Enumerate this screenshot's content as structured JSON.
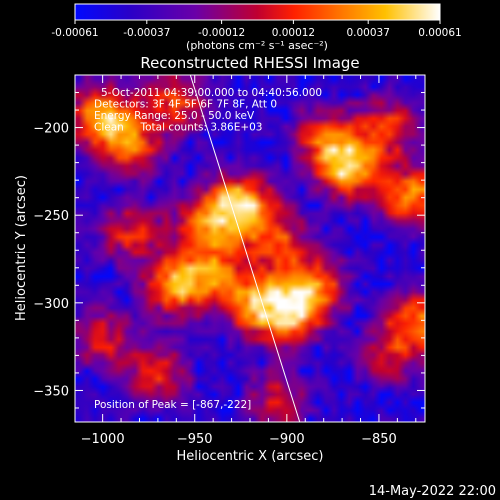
{
  "colorbar": {
    "ticks": [
      "-0.00061",
      "-0.00037",
      "-0.00012",
      "0.00012",
      "0.00037",
      "0.00061"
    ],
    "tick_values": [
      -0.00061,
      -0.00037,
      -0.00012,
      0.00012,
      0.00037,
      0.00061
    ],
    "range": [
      -0.00061,
      0.00061
    ],
    "units_label": "(photons cm⁻² s⁻¹ asec⁻²)"
  },
  "chart_data": {
    "type": "heatmap",
    "title": "Reconstructed RHESSI Image",
    "xlabel": "Heliocentric X (arcsec)",
    "ylabel": "Heliocentric Y (arcsec)",
    "xlim": [
      -1015,
      -825
    ],
    "ylim": [
      -368,
      -170
    ],
    "x_ticks": [
      -1000,
      -950,
      -900,
      -850
    ],
    "x_tick_labels": [
      "−1000",
      "−950",
      "−900",
      "−850"
    ],
    "y_ticks": [
      -200,
      -250,
      -300,
      -350
    ],
    "y_tick_labels": [
      "−200",
      "−250",
      "−300",
      "−350"
    ],
    "colormap": "blue-purple-red-yellow-white",
    "limb_line": [
      [
        -953,
        -168
      ],
      [
        -893,
        -368
      ]
    ],
    "peak": [
      -867,
      -222
    ],
    "sources": [
      {
        "x": -1000,
        "y": -193,
        "v": 0.8
      },
      {
        "x": -985,
        "y": -210,
        "v": 0.6
      },
      {
        "x": -960,
        "y": -185,
        "v": 0.55
      },
      {
        "x": -925,
        "y": -245,
        "v": 1.0
      },
      {
        "x": -945,
        "y": -255,
        "v": 0.6
      },
      {
        "x": -905,
        "y": -265,
        "v": 0.55
      },
      {
        "x": -900,
        "y": -305,
        "v": 0.95
      },
      {
        "x": -920,
        "y": -300,
        "v": 0.6
      },
      {
        "x": -885,
        "y": -290,
        "v": 0.65
      },
      {
        "x": -960,
        "y": -290,
        "v": 0.75
      },
      {
        "x": -940,
        "y": -282,
        "v": 0.55
      },
      {
        "x": -867,
        "y": -222,
        "v": 0.95
      },
      {
        "x": -845,
        "y": -200,
        "v": 0.55
      },
      {
        "x": -880,
        "y": -205,
        "v": 0.5
      },
      {
        "x": -832,
        "y": -240,
        "v": 0.75
      },
      {
        "x": -830,
        "y": -310,
        "v": 0.65
      },
      {
        "x": -985,
        "y": -260,
        "v": 0.5
      },
      {
        "x": -1000,
        "y": -320,
        "v": 0.45
      },
      {
        "x": -970,
        "y": -340,
        "v": 0.5
      },
      {
        "x": -905,
        "y": -355,
        "v": 0.45
      },
      {
        "x": -845,
        "y": -330,
        "v": 0.4
      }
    ],
    "annotations": [
      "5-Oct-2011 04:39:00.000 to 04:40:56.000",
      "Detectors: 3F 4F 5F 6F 7F 8F, Att 0",
      "Energy Range: 25.0 - 50.0 keV",
      "Clean     Total counts: 3.86E+03",
      "Position of Peak = [-867,-222]"
    ]
  },
  "footer": {
    "timestamp": "14-May-2022 22:00"
  }
}
